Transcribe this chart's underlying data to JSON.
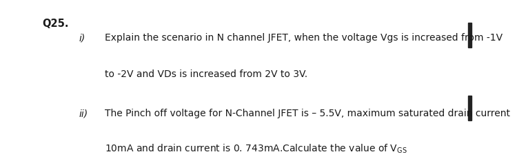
{
  "background_color": "#ffffff",
  "question_label": "Q25.",
  "question_label_fontsize": 10.5,
  "part_i_label": "i)",
  "part_i_label_fontsize": 10,
  "part_i_line1": "Explain the scenario in N channel JFET, when the voltage Vgs is increased from -1V",
  "part_i_line2": "to -2V and VDs is increased from 2V to 3V.",
  "part_ii_label": "ii)",
  "part_ii_label_fontsize": 10,
  "part_ii_line1": "The Pinch off voltage for N-Channel JFET is – 5.5V, maximum saturated drain current",
  "part_ii_line2_plain": "10mA and drain current is 0. 743mA.Calculate the value of V",
  "part_ii_line2_sub": "GS",
  "text_fontsize": 10,
  "bar_color": "#222222",
  "text_color": "#1a1a1a"
}
